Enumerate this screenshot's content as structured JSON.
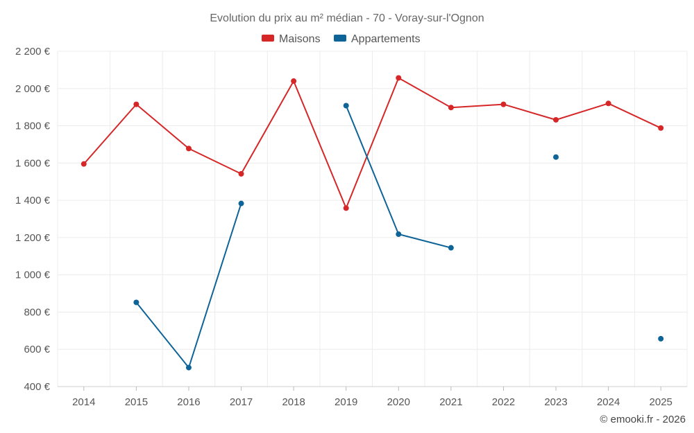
{
  "chart_data": {
    "type": "line",
    "title": "Evolution du prix au m² médian - 70 - Voray-sur-l'Ognon",
    "x": [
      "2014",
      "2015",
      "2016",
      "2017",
      "2018",
      "2019",
      "2020",
      "2021",
      "2022",
      "2023",
      "2024",
      "2025"
    ],
    "ylim": [
      400,
      2200
    ],
    "yticks": [
      400,
      600,
      800,
      1000,
      1200,
      1400,
      1600,
      1800,
      2000,
      2200
    ],
    "ytick_labels": [
      "400 €",
      "600 €",
      "800 €",
      "1 000 €",
      "1 200 €",
      "1 400 €",
      "1 600 €",
      "1 800 €",
      "2 000 €",
      "2 200 €"
    ],
    "grid": true,
    "legend_position": "top-center",
    "series": [
      {
        "name": "Maisons",
        "color": "#d62728",
        "values": [
          1595,
          1915,
          1678,
          1542,
          2040,
          1358,
          2057,
          1898,
          1915,
          1832,
          1920,
          1788
        ]
      },
      {
        "name": "Appartements",
        "color": "#0e6497",
        "values": [
          null,
          852,
          502,
          1383,
          null,
          1908,
          1218,
          1145,
          null,
          1632,
          null,
          657
        ]
      }
    ]
  },
  "credit": "© emooki.fr - 2026"
}
